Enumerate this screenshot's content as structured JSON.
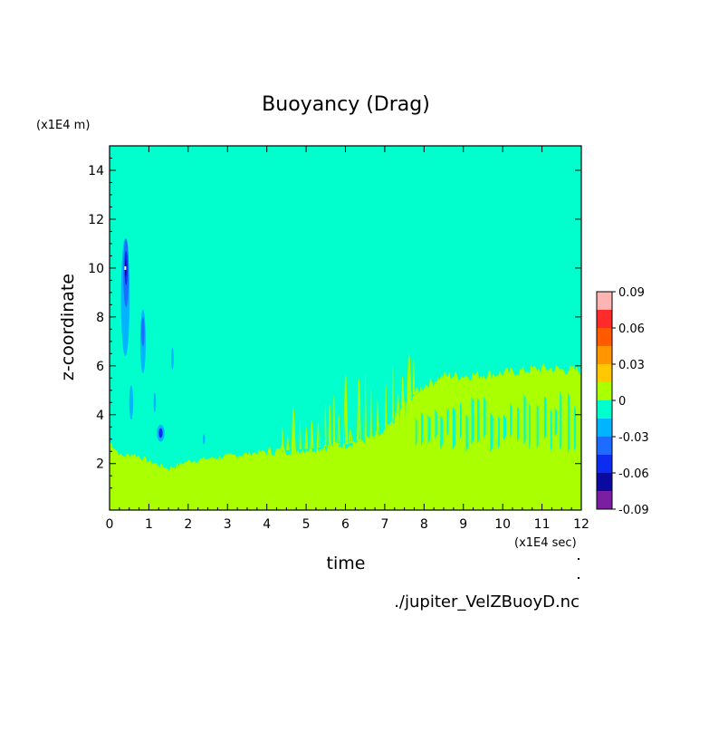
{
  "chart_data": {
    "type": "heatmap",
    "title": "Buoyancy (Drag)",
    "xlabel": "time",
    "ylabel": "z-coordinate",
    "x_unit": "(x1E4 sec)",
    "y_unit": "(x1E4 m)",
    "xlim": [
      0,
      12
    ],
    "ylim": [
      0.1,
      15
    ],
    "x_ticks": [
      0,
      1,
      2,
      3,
      4,
      5,
      6,
      7,
      8,
      9,
      10,
      11,
      12
    ],
    "y_ticks": [
      2,
      4,
      6,
      8,
      10,
      12,
      14
    ],
    "colorbar": {
      "levels": [
        -0.09,
        -0.075,
        -0.06,
        -0.045,
        -0.03,
        -0.015,
        0,
        0.015,
        0.03,
        0.045,
        0.06,
        0.075,
        0.09
      ],
      "colors": [
        "#7a1fa2",
        "#0a0aa0",
        "#0c2cf0",
        "#1e6cff",
        "#00b4ff",
        "#00ffcc",
        "#aaff00",
        "#ffc800",
        "#ff9600",
        "#ff5a00",
        "#ff2a2a",
        "#ffb4b4"
      ],
      "tick_labels": [
        "0.09",
        "0.06",
        "0.03",
        "0",
        "-0.03",
        "-0.06",
        "-0.09"
      ]
    },
    "background_value_class": "-0.015 to 0",
    "positive_region_top_z": [
      {
        "x": 0.0,
        "z": 2.9
      },
      {
        "x": 0.3,
        "z": 2.3
      },
      {
        "x": 0.6,
        "z": 2.4
      },
      {
        "x": 1.0,
        "z": 2.1
      },
      {
        "x": 1.5,
        "z": 1.8
      },
      {
        "x": 2.0,
        "z": 2.1
      },
      {
        "x": 3.0,
        "z": 2.3
      },
      {
        "x": 4.0,
        "z": 2.5
      },
      {
        "x": 5.0,
        "z": 2.6
      },
      {
        "x": 6.0,
        "z": 2.8
      },
      {
        "x": 7.0,
        "z": 3.2
      },
      {
        "x": 7.5,
        "z": 4.5
      },
      {
        "x": 8.0,
        "z": 5.2
      },
      {
        "x": 8.5,
        "z": 5.6
      },
      {
        "x": 9.0,
        "z": 5.6
      },
      {
        "x": 10.0,
        "z": 5.7
      },
      {
        "x": 11.0,
        "z": 5.9
      },
      {
        "x": 12.0,
        "z": 5.8
      }
    ],
    "negative_features": [
      {
        "x": 0.4,
        "z_min": 6.4,
        "z_max": 11.2,
        "min_value": -0.09
      },
      {
        "x": 0.85,
        "z_min": 5.7,
        "z_max": 8.3,
        "min_value": -0.045
      },
      {
        "x": 1.3,
        "z_min": 2.9,
        "z_max": 3.6,
        "min_value": -0.06
      },
      {
        "x": 1.6,
        "z_min": 5.8,
        "z_max": 6.8,
        "min_value": -0.03
      }
    ]
  },
  "footer": {
    "source_file": "./jupiter_VelZBuoyD.nc"
  }
}
